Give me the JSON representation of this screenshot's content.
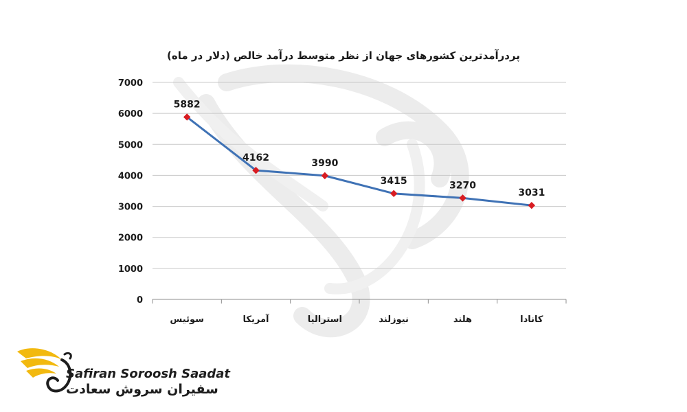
{
  "chart_data": {
    "type": "line",
    "title": "پردرآمدترین کشورهای جهان از نظر متوسط درآمد خالص (دلار در ماه)",
    "categories": [
      "سوئیس",
      "آمریکا",
      "استرالیا",
      "نیوزلند",
      "هلند",
      "کانادا"
    ],
    "values": [
      5882,
      4162,
      3990,
      3415,
      3270,
      3031
    ],
    "data_labels": [
      "5882",
      "4162",
      "3990",
      "3415",
      "3270",
      "3031"
    ],
    "yticks": [
      "0",
      "1000",
      "2000",
      "3000",
      "4000",
      "5000",
      "6000",
      "7000"
    ],
    "ylim": [
      0,
      7000
    ],
    "grid": true,
    "line_color": "#3f72b5",
    "marker_color": "#d81c22"
  },
  "logo": {
    "name_en": "Safiran Soroosh Saadat",
    "name_fa": "سفیران سروش سعادت",
    "accent_color": "#f2b90f"
  }
}
